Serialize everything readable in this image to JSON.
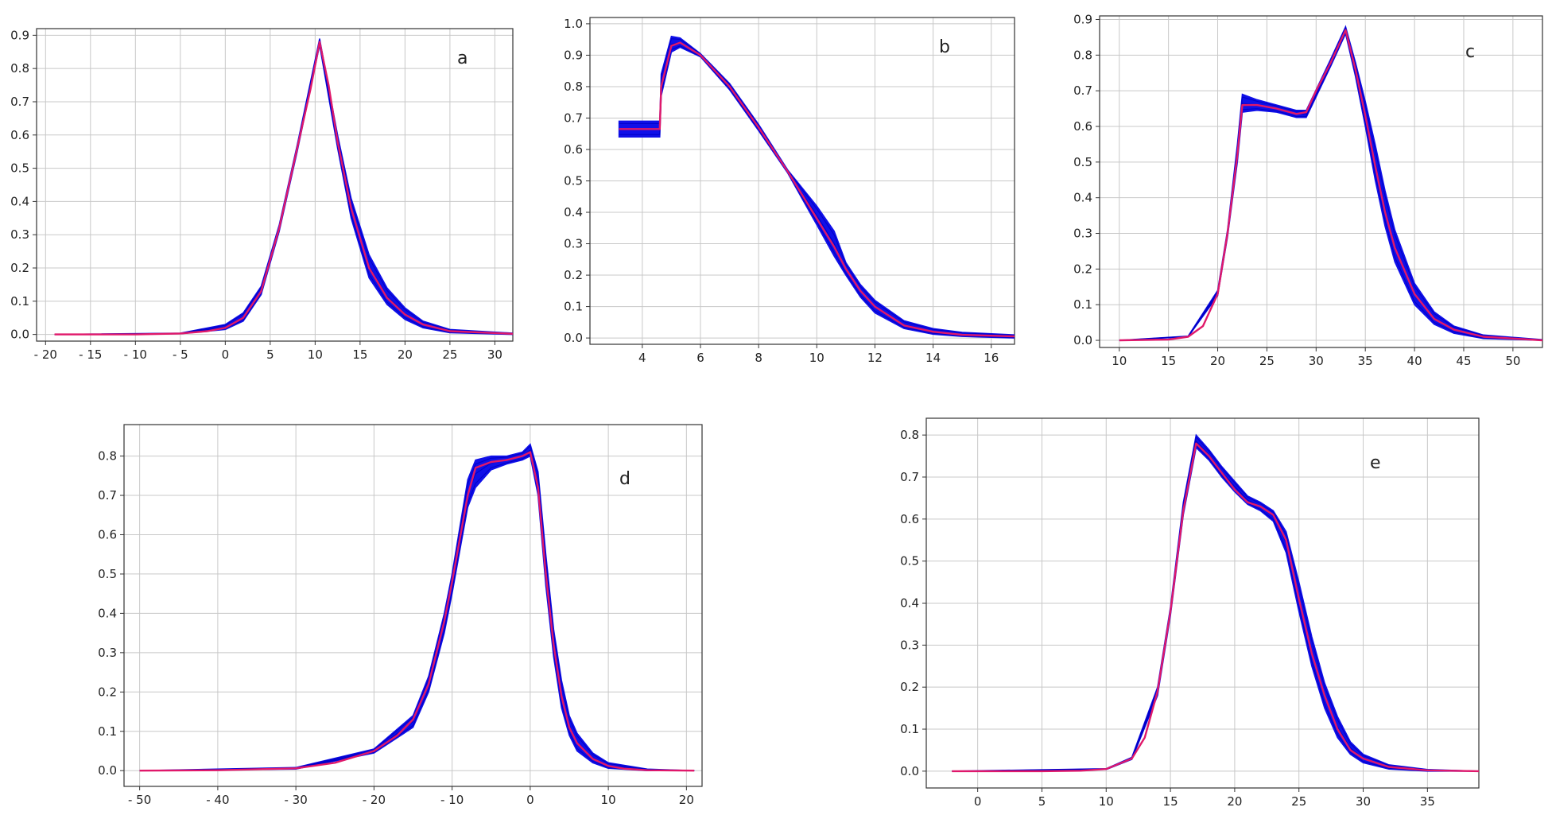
{
  "colors": {
    "band": "#1010e8",
    "mean": "#e0186a",
    "grid": "#c8c8c8",
    "axis": "#333333"
  },
  "chart_data": [
    {
      "type": "line",
      "panel_label": "a",
      "xlim": [
        -21,
        32
      ],
      "ylim": [
        -0.02,
        0.92
      ],
      "xticks": [
        -20,
        -15,
        -10,
        -5,
        0,
        5,
        10,
        15,
        20,
        25,
        30
      ],
      "xtick_labels": [
        "- 20",
        "- 15",
        "- 10",
        "- 5",
        "0",
        "5",
        "10",
        "15",
        "20",
        "25",
        "30"
      ],
      "yticks": [
        0,
        0.1,
        0.2,
        0.3,
        0.4,
        0.5,
        0.6,
        0.7,
        0.8,
        0.9
      ],
      "ytick_labels": [
        "0.0",
        "0.1",
        "0.2",
        "0.3",
        "0.4",
        "0.5",
        "0.6",
        "0.7",
        "0.8",
        "0.9"
      ],
      "grid": true,
      "series": [
        {
          "role": "mean",
          "x": [
            -19,
            -10,
            -5,
            -2,
            0,
            2,
            4,
            6,
            8,
            9.5,
            10.5,
            11.5,
            12.5,
            14,
            16,
            18,
            20,
            22,
            25,
            32
          ],
          "y": [
            0,
            0,
            0.003,
            0.01,
            0.02,
            0.05,
            0.13,
            0.32,
            0.56,
            0.74,
            0.88,
            0.75,
            0.58,
            0.38,
            0.2,
            0.11,
            0.06,
            0.03,
            0.01,
            0.002
          ]
        },
        {
          "role": "band",
          "x": [
            -19,
            -5,
            0,
            2,
            4,
            6,
            8,
            10.5,
            12.5,
            14,
            16,
            18,
            20,
            22,
            25,
            32
          ],
          "lower": [
            0,
            0.002,
            0.015,
            0.04,
            0.12,
            0.31,
            0.55,
            0.87,
            0.56,
            0.35,
            0.17,
            0.09,
            0.045,
            0.02,
            0.005,
            0
          ],
          "upper": [
            0,
            0.004,
            0.03,
            0.065,
            0.145,
            0.33,
            0.57,
            0.89,
            0.6,
            0.41,
            0.24,
            0.14,
            0.08,
            0.04,
            0.015,
            0.004
          ]
        }
      ]
    },
    {
      "type": "line",
      "panel_label": "b",
      "xlim": [
        2.2,
        16.8
      ],
      "ylim": [
        -0.02,
        1.02
      ],
      "xticks": [
        4,
        6,
        8,
        10,
        12,
        14,
        16
      ],
      "xtick_labels": [
        "4",
        "6",
        "8",
        "10",
        "12",
        "14",
        "16"
      ],
      "yticks": [
        0,
        0.1,
        0.2,
        0.3,
        0.4,
        0.5,
        0.6,
        0.7,
        0.8,
        0.9,
        1.0
      ],
      "ytick_labels": [
        "0.0",
        "0.1",
        "0.2",
        "0.3",
        "0.4",
        "0.5",
        "0.6",
        "0.7",
        "0.8",
        "0.9",
        "1.0"
      ],
      "grid": true,
      "series": [
        {
          "role": "mean",
          "x": [
            3.2,
            4.6,
            4.65,
            5,
            5.3,
            6,
            7,
            8,
            9,
            10,
            10.6,
            11,
            11.5,
            12,
            13,
            14,
            15,
            16.8
          ],
          "y": [
            0.665,
            0.665,
            0.8,
            0.93,
            0.94,
            0.9,
            0.8,
            0.67,
            0.53,
            0.38,
            0.29,
            0.22,
            0.15,
            0.1,
            0.04,
            0.02,
            0.01,
            0.005
          ]
        },
        {
          "role": "band",
          "x": [
            3.2,
            4.6,
            4.65,
            5,
            5.3,
            6,
            7,
            8,
            9,
            10,
            10.6,
            11,
            11.5,
            12,
            13,
            14,
            15,
            16.8
          ],
          "lower": [
            0.64,
            0.64,
            0.77,
            0.91,
            0.925,
            0.895,
            0.79,
            0.66,
            0.525,
            0.36,
            0.26,
            0.2,
            0.13,
            0.08,
            0.03,
            0.012,
            0.005,
            0
          ],
          "upper": [
            0.69,
            0.69,
            0.84,
            0.96,
            0.955,
            0.905,
            0.81,
            0.68,
            0.535,
            0.42,
            0.34,
            0.24,
            0.17,
            0.12,
            0.055,
            0.03,
            0.018,
            0.01
          ]
        }
      ]
    },
    {
      "type": "line",
      "panel_label": "c",
      "xlim": [
        8,
        53
      ],
      "ylim": [
        -0.02,
        0.91
      ],
      "xticks": [
        10,
        15,
        20,
        25,
        30,
        35,
        40,
        45,
        50
      ],
      "xtick_labels": [
        "10",
        "15",
        "20",
        "25",
        "30",
        "35",
        "40",
        "45",
        "50"
      ],
      "yticks": [
        0,
        0.1,
        0.2,
        0.3,
        0.4,
        0.5,
        0.6,
        0.7,
        0.8,
        0.9
      ],
      "ytick_labels": [
        "0.0",
        "0.1",
        "0.2",
        "0.3",
        "0.4",
        "0.5",
        "0.6",
        "0.7",
        "0.8",
        "0.9"
      ],
      "grid": true,
      "series": [
        {
          "role": "mean",
          "x": [
            10,
            15,
            17,
            18.5,
            20,
            21,
            22,
            22.5,
            24,
            26,
            28,
            29,
            30,
            31.5,
            33,
            34,
            35,
            36,
            37,
            38,
            40,
            42,
            44,
            47,
            53
          ],
          "y": [
            0,
            0.002,
            0.01,
            0.04,
            0.13,
            0.3,
            0.52,
            0.66,
            0.66,
            0.65,
            0.635,
            0.64,
            0.7,
            0.78,
            0.87,
            0.76,
            0.63,
            0.49,
            0.36,
            0.26,
            0.13,
            0.06,
            0.03,
            0.01,
            0
          ]
        },
        {
          "role": "band",
          "x": [
            10,
            17,
            20,
            21,
            22,
            22.5,
            24,
            26,
            28,
            29,
            31.5,
            33,
            34,
            35,
            36,
            37,
            38,
            40,
            42,
            44,
            47,
            53
          ],
          "lower": [
            0,
            0.01,
            0.125,
            0.29,
            0.5,
            0.64,
            0.645,
            0.64,
            0.625,
            0.625,
            0.77,
            0.86,
            0.74,
            0.6,
            0.45,
            0.32,
            0.22,
            0.1,
            0.045,
            0.02,
            0.005,
            0
          ],
          "upper": [
            0,
            0.012,
            0.14,
            0.31,
            0.55,
            0.69,
            0.675,
            0.66,
            0.645,
            0.645,
            0.79,
            0.88,
            0.78,
            0.67,
            0.55,
            0.42,
            0.31,
            0.16,
            0.08,
            0.04,
            0.015,
            0.002
          ]
        }
      ]
    },
    {
      "type": "line",
      "panel_label": "d",
      "xlim": [
        -52,
        22
      ],
      "ylim": [
        -0.04,
        0.88
      ],
      "xticks": [
        -50,
        -40,
        -30,
        -20,
        -10,
        0,
        10,
        20
      ],
      "xtick_labels": [
        "- 50",
        "- 40",
        "- 30",
        "- 20",
        "- 10",
        "0",
        "10",
        "20"
      ],
      "yticks": [
        0,
        0.1,
        0.2,
        0.3,
        0.4,
        0.5,
        0.6,
        0.7,
        0.8
      ],
      "ytick_labels": [
        "0.0",
        "0.1",
        "0.2",
        "0.3",
        "0.4",
        "0.5",
        "0.6",
        "0.7",
        "0.8"
      ],
      "grid": true,
      "series": [
        {
          "role": "mean",
          "x": [
            -50,
            -40,
            -30,
            -25,
            -20,
            -17,
            -15,
            -13,
            -11,
            -10,
            -9,
            -8,
            -7,
            -5,
            -3,
            -1,
            0,
            1,
            2,
            3,
            4,
            5,
            6,
            8,
            10,
            12,
            15,
            21
          ],
          "y": [
            0,
            0.001,
            0.006,
            0.02,
            0.05,
            0.09,
            0.13,
            0.22,
            0.38,
            0.48,
            0.59,
            0.7,
            0.77,
            0.785,
            0.79,
            0.8,
            0.81,
            0.72,
            0.5,
            0.32,
            0.19,
            0.11,
            0.07,
            0.03,
            0.012,
            0.005,
            0.001,
            0
          ]
        },
        {
          "role": "band",
          "x": [
            -50,
            -30,
            -20,
            -15,
            -13,
            -11,
            -10,
            -9,
            -8,
            -7,
            -5,
            -3,
            -1,
            0,
            1,
            2,
            3,
            4,
            5,
            6,
            8,
            10,
            15,
            21
          ],
          "lower": [
            0,
            0.004,
            0.045,
            0.11,
            0.2,
            0.35,
            0.45,
            0.56,
            0.67,
            0.72,
            0.765,
            0.78,
            0.79,
            0.8,
            0.7,
            0.47,
            0.29,
            0.16,
            0.09,
            0.05,
            0.02,
            0.006,
            0,
            0
          ],
          "upper": [
            0,
            0.008,
            0.055,
            0.14,
            0.24,
            0.4,
            0.5,
            0.62,
            0.74,
            0.79,
            0.8,
            0.8,
            0.81,
            0.83,
            0.76,
            0.55,
            0.36,
            0.23,
            0.14,
            0.095,
            0.045,
            0.02,
            0.004,
            0
          ]
        }
      ]
    },
    {
      "type": "line",
      "panel_label": "e",
      "xlim": [
        -4,
        39
      ],
      "ylim": [
        -0.04,
        0.84
      ],
      "xticks": [
        0,
        5,
        10,
        15,
        20,
        25,
        30,
        35
      ],
      "xtick_labels": [
        "0",
        "5",
        "10",
        "15",
        "20",
        "25",
        "30",
        "35"
      ],
      "yticks": [
        0,
        0.1,
        0.2,
        0.3,
        0.4,
        0.5,
        0.6,
        0.7,
        0.8
      ],
      "ytick_labels": [
        "0.0",
        "0.1",
        "0.2",
        "0.3",
        "0.4",
        "0.5",
        "0.6",
        "0.7",
        "0.8"
      ],
      "grid": true,
      "series": [
        {
          "role": "mean",
          "x": [
            -2,
            5,
            8,
            10,
            12,
            13,
            14,
            15,
            16,
            17,
            18,
            19,
            20,
            21,
            22,
            23,
            24,
            25,
            26,
            27,
            28,
            29,
            30,
            32,
            35,
            39
          ],
          "y": [
            0,
            0,
            0.001,
            0.005,
            0.03,
            0.08,
            0.19,
            0.38,
            0.62,
            0.78,
            0.75,
            0.71,
            0.67,
            0.64,
            0.63,
            0.61,
            0.55,
            0.41,
            0.28,
            0.18,
            0.1,
            0.05,
            0.03,
            0.01,
            0.002,
            0
          ]
        },
        {
          "role": "band",
          "x": [
            -2,
            10,
            12,
            14,
            15,
            16,
            17,
            18,
            19,
            20,
            21,
            22,
            23,
            24,
            25,
            26,
            27,
            28,
            29,
            30,
            32,
            35,
            39
          ],
          "lower": [
            0,
            0.004,
            0.028,
            0.18,
            0.37,
            0.61,
            0.77,
            0.74,
            0.7,
            0.665,
            0.635,
            0.62,
            0.595,
            0.52,
            0.38,
            0.25,
            0.15,
            0.08,
            0.04,
            0.02,
            0.005,
            0,
            0
          ],
          "upper": [
            0,
            0.006,
            0.033,
            0.2,
            0.39,
            0.64,
            0.8,
            0.765,
            0.725,
            0.69,
            0.655,
            0.64,
            0.62,
            0.57,
            0.45,
            0.32,
            0.21,
            0.13,
            0.07,
            0.04,
            0.015,
            0.004,
            0
          ]
        }
      ]
    }
  ]
}
